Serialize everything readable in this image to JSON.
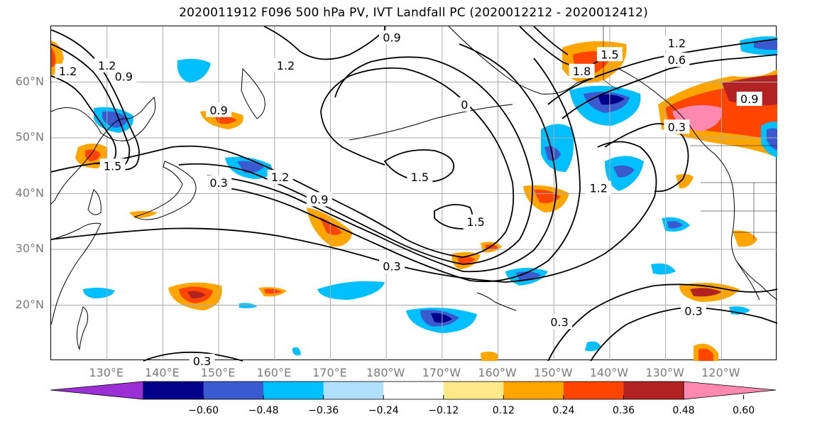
{
  "title": "2020011912 F096 500 hPa PV, IVT Landfall PC (2020012212 - 2020012412)",
  "lat_labels": [
    "60°N",
    "50°N",
    "40°N",
    "30°N",
    "20°N"
  ],
  "lat_values": [
    60,
    50,
    40,
    30,
    20
  ],
  "lon_labels": [
    "130°E",
    "140°E",
    "150°E",
    "160°E",
    "170°E",
    "180°W",
    "170°W",
    "160°W",
    "150°W",
    "140°W",
    "130°W",
    "120°W"
  ],
  "lon_values": [
    130,
    140,
    150,
    160,
    170,
    180,
    190,
    200,
    210,
    220,
    230,
    240
  ],
  "map_extent": {
    "lon_min": 120,
    "lon_max": 250,
    "lat_min": 10,
    "lat_max": 70
  },
  "contour_labels": [
    {
      "text": "1.2",
      "lon": 130,
      "lat": 63
    },
    {
      "text": "0.9",
      "lon": 133,
      "lat": 61
    },
    {
      "text": "1.2",
      "lon": 123,
      "lat": 62
    },
    {
      "text": "1.5",
      "lon": 131,
      "lat": 45
    },
    {
      "text": "1.2",
      "lon": 162,
      "lat": 63
    },
    {
      "text": "0.9",
      "lon": 181,
      "lat": 68
    },
    {
      "text": "0.9",
      "lon": 150,
      "lat": 55
    },
    {
      "text": "0.3",
      "lon": 150,
      "lat": 42
    },
    {
      "text": "1.2",
      "lon": 161,
      "lat": 43
    },
    {
      "text": "0.9",
      "lon": 168,
      "lat": 39
    },
    {
      "text": "1.5",
      "lon": 186,
      "lat": 43
    },
    {
      "text": "1.5",
      "lon": 196,
      "lat": 35
    },
    {
      "text": "0",
      "lon": 194,
      "lat": 56
    },
    {
      "text": "1.8",
      "lon": 215,
      "lat": 62
    },
    {
      "text": "1.5",
      "lon": 220,
      "lat": 65
    },
    {
      "text": "1.2",
      "lon": 232,
      "lat": 67
    },
    {
      "text": "0.6",
      "lon": 232,
      "lat": 64
    },
    {
      "text": "0.3",
      "lon": 181,
      "lat": 27
    },
    {
      "text": "1.2",
      "lon": 218,
      "lat": 41
    },
    {
      "text": "0.3",
      "lon": 232,
      "lat": 52
    },
    {
      "text": "0.3",
      "lon": 235,
      "lat": 19
    },
    {
      "text": "0.3",
      "lon": 211,
      "lat": 17
    },
    {
      "text": "0.9",
      "lon": 245,
      "lat": 57
    },
    {
      "text": "0.3",
      "lon": 147,
      "lat": 10
    }
  ],
  "colorbar": {
    "colors": [
      "#9b30d6",
      "#00008b",
      "#3a5bd0",
      "#00bfff",
      "#b0e0ff",
      "#ffffff",
      "#ffe88a",
      "#ffa500",
      "#ff4500",
      "#b22222",
      "#ff88b0"
    ],
    "ticks": [
      "−0.60",
      "−0.48",
      "−0.36",
      "−0.24",
      "−0.12",
      "0.12",
      "0.24",
      "0.36",
      "0.48",
      "0.60"
    ]
  },
  "colors": {
    "grid": "#aaaaaa",
    "contour": "#000000",
    "coast": "#000000",
    "axis_label": "#7a7a7a"
  }
}
